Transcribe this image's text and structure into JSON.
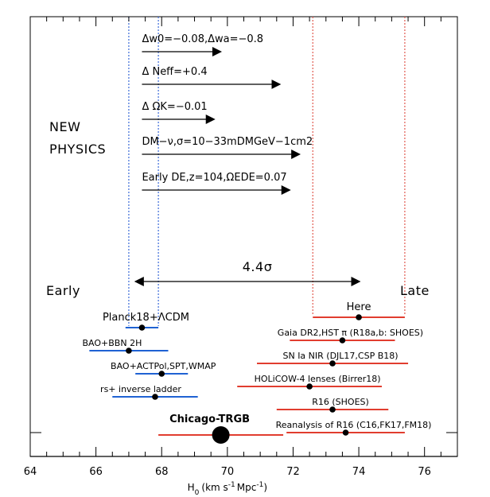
{
  "chart_data": {
    "type": "scatter",
    "xlabel": "H0 (km s-1 Mpc-1)",
    "xlabel_parts": {
      "prefix": "H",
      "sub": "0",
      "units_start": "(km s",
      "sup1": "-1",
      "units_mid": "Mpc",
      "sup2": "-1",
      "units_end": ")"
    },
    "xlim": [
      64,
      77
    ],
    "xticks": [
      64,
      66,
      68,
      70,
      72,
      74,
      76
    ],
    "category_labels": {
      "early": "Early",
      "late": "Late",
      "new_physics": [
        "NEW",
        "PHYSICS"
      ]
    },
    "tension": {
      "label": "4.4σ",
      "x_start": 67.4,
      "x_end": 74.0
    },
    "bands": {
      "early": [
        67.0,
        67.9
      ],
      "late": [
        72.6,
        75.4
      ]
    },
    "new_physics": [
      {
        "label": "Δw0=−0.08,Δwa=−0.8",
        "x_start": 67.4,
        "x_end": 69.8
      },
      {
        "label": "Δ Neff=+0.4",
        "x_start": 67.4,
        "x_end": 71.6
      },
      {
        "label": "Δ ΩK=−0.01",
        "x_start": 67.4,
        "x_end": 69.6
      },
      {
        "label": "DM−ν,σ=10−33mDMGeV−1cm2",
        "x_start": 67.4,
        "x_end": 72.2
      },
      {
        "label": "Early DE,z=104,ΩEDE=0.07",
        "x_start": 67.4,
        "x_end": 71.9
      }
    ],
    "measurements": [
      {
        "group": "late",
        "label": "Here",
        "value": 74.0,
        "err_low": 1.4,
        "err_high": 1.4,
        "color": "#e13d2f"
      },
      {
        "group": "early",
        "label": "Planck18+ΛCDM",
        "value": 67.4,
        "err_low": 0.5,
        "err_high": 0.5,
        "color": "#1f62d3"
      },
      {
        "group": "late",
        "label": "Gaia DR2,HST π (R18a,b: SHOES)",
        "value": 73.5,
        "err_low": 1.6,
        "err_high": 1.6,
        "color": "#e13d2f"
      },
      {
        "group": "early",
        "label": "BAO+BBN 2H",
        "value": 67.0,
        "err_low": 1.2,
        "err_high": 1.2,
        "color": "#1f62d3"
      },
      {
        "group": "late",
        "label": "SN Ia NIR (DJL17,CSP B18)",
        "value": 73.2,
        "err_low": 2.3,
        "err_high": 2.3,
        "color": "#e13d2f"
      },
      {
        "group": "early",
        "label": "BAO+ACTPol,SPT,WMAP",
        "value": 68.0,
        "err_low": 0.8,
        "err_high": 0.8,
        "color": "#1f62d3"
      },
      {
        "group": "late",
        "label": "HOLiCOW-4 lenses (Birrer18)",
        "value": 72.5,
        "err_low": 2.2,
        "err_high": 2.2,
        "color": "#e13d2f"
      },
      {
        "group": "early",
        "label": "rs+ inverse ladder",
        "value": 67.8,
        "err_low": 1.3,
        "err_high": 1.3,
        "color": "#1f62d3"
      },
      {
        "group": "late",
        "label": "R16 (SHOES)",
        "value": 73.2,
        "err_low": 1.7,
        "err_high": 1.7,
        "color": "#e13d2f"
      },
      {
        "group": "highlight",
        "label": "Chicago-TRGB",
        "value": 69.8,
        "err_low": 1.9,
        "err_high": 1.9,
        "color": "#e13d2f"
      },
      {
        "group": "late",
        "label": "Reanalysis of R16 (C16,FK17,FM18)",
        "value": 73.6,
        "err_low": 1.8,
        "err_high": 1.8,
        "color": "#e13d2f"
      }
    ],
    "colors": {
      "early": "#1f62d3",
      "late": "#e13d2f",
      "black": "#000000"
    }
  }
}
